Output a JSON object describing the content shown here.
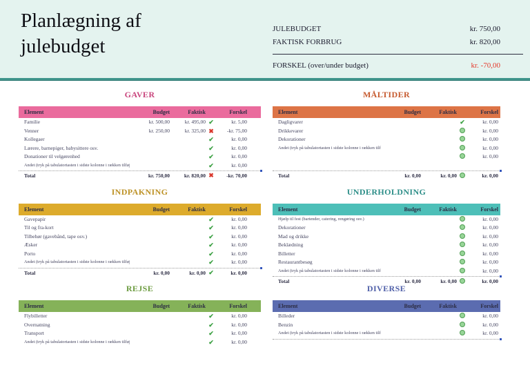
{
  "banner": {
    "title": "Planlægning af julebudget",
    "summary": {
      "budget_label": "JULEBUDGET",
      "budget_value": "kr. 750,00",
      "actual_label": "FAKTISK FORBRUG",
      "actual_value": "kr. 820,00",
      "diff_label": "FORSKEL (over/under budget)",
      "diff_value": "kr. -70,00"
    }
  },
  "columns": {
    "element": "Element",
    "budget": "Budget",
    "faktisk": "Faktisk",
    "forskel": "Forskel"
  },
  "colors": {
    "banner_bg": "#e4f3ef",
    "banner_rule": "#43978e",
    "negative": "#e5392b",
    "check": "#3da144",
    "cross": "#d9372c",
    "circle_fill": "#98d598"
  },
  "sections": [
    {
      "title": "GAVER",
      "side": "left",
      "header_bg": "#ea6b9d",
      "title_color": "#c9457d",
      "rows": [
        {
          "element": "Familie",
          "budget": "kr. 500,00",
          "faktisk": "kr. 495,00",
          "icon": "check",
          "forskel": "kr. 5,00"
        },
        {
          "element": "Venner",
          "budget": "kr. 250,00",
          "faktisk": "kr. 325,00",
          "icon": "x",
          "forskel": "-kr. 75,00"
        },
        {
          "element": "Kollegaer",
          "budget": "",
          "faktisk": "",
          "icon": "check",
          "forskel": "kr. 0,00"
        },
        {
          "element": "Lærere, barnepiger, babysittere osv.",
          "budget": "",
          "faktisk": "",
          "icon": "check",
          "forskel": "kr. 0,00"
        },
        {
          "element": "Donationer til velgørenhed",
          "budget": "",
          "faktisk": "",
          "icon": "check",
          "forskel": "kr. 0,00"
        },
        {
          "element": "Andet (tryk på tabulatortasten i sidste kolonne i rækken tilføje række)",
          "budget": "",
          "faktisk": "",
          "icon": "check",
          "forskel": "kr. 0,00"
        }
      ],
      "spacer_rows": 0,
      "total": {
        "label": "Total",
        "budget": "kr. 750,00",
        "faktisk": "kr. 820,00",
        "icon": "x",
        "forskel": "-kr. 70,00"
      }
    },
    {
      "title": "MÅLTIDER",
      "side": "right",
      "header_bg": "#dd7446",
      "title_color": "#c65a2e",
      "rows": [
        {
          "element": "Dagligvarer",
          "budget": "",
          "faktisk": "",
          "icon": "check",
          "forskel": "kr. 0,00"
        },
        {
          "element": "Drikkevarer",
          "budget": "",
          "faktisk": "",
          "icon": "circle",
          "forskel": "kr. 0,00"
        },
        {
          "element": "Dekorationer",
          "budget": "",
          "faktisk": "",
          "icon": "circle",
          "forskel": "kr. 0,00"
        },
        {
          "element": "Andet (tryk på tabulatortasten i sidste kolonne i rækken tilføje række)",
          "budget": "",
          "faktisk": "",
          "icon": "circle",
          "forskel": "kr. 0,00"
        },
        {
          "element": "",
          "budget": "",
          "faktisk": "",
          "icon": "circle",
          "forskel": "kr. 0,00"
        }
      ],
      "spacer_rows": 1,
      "total": {
        "label": "Total",
        "budget": "kr. 0,00",
        "faktisk": "kr. 0,00",
        "icon": "circle",
        "forskel": "kr. 0,00"
      }
    },
    {
      "title": "INDPAKNING",
      "side": "left",
      "header_bg": "#ddab2c",
      "title_color": "#bd9226",
      "rows": [
        {
          "element": "Gavepapir",
          "budget": "",
          "faktisk": "",
          "icon": "check",
          "forskel": "kr. 0,00"
        },
        {
          "element": "Til og fra-kort",
          "budget": "",
          "faktisk": "",
          "icon": "check",
          "forskel": "kr. 0,00"
        },
        {
          "element": "Tilbehør (gavebånd, tape osv.)",
          "budget": "",
          "faktisk": "",
          "icon": "check",
          "forskel": "kr. 0,00"
        },
        {
          "element": "Æsker",
          "budget": "",
          "faktisk": "",
          "icon": "check",
          "forskel": "kr. 0,00"
        },
        {
          "element": "Porto",
          "budget": "",
          "faktisk": "",
          "icon": "check",
          "forskel": "kr. 0,00"
        },
        {
          "element": "Andet (tryk på tabulatortasten i sidste kolonne i rækken tilføje række)",
          "budget": "",
          "faktisk": "",
          "icon": "check",
          "forskel": "kr. 0,00"
        }
      ],
      "spacer_rows": 0,
      "total": {
        "label": "Total",
        "budget": "kr. 0,00",
        "faktisk": "kr. 0,00",
        "icon": "check",
        "forskel": "kr. 0,00"
      }
    },
    {
      "title": "UNDERHOLDNING",
      "side": "right",
      "header_bg": "#4dbfb8",
      "title_color": "#2b8d87",
      "rows": [
        {
          "element": "Hjælp til fest (bartender, catering, rengøring osv.)",
          "budget": "",
          "faktisk": "",
          "icon": "circle",
          "forskel": "kr. 0,00"
        },
        {
          "element": "Dekorationer",
          "budget": "",
          "faktisk": "",
          "icon": "circle",
          "forskel": "kr. 0,00"
        },
        {
          "element": "Mad og drikke",
          "budget": "",
          "faktisk": "",
          "icon": "circle",
          "forskel": "kr. 0,00"
        },
        {
          "element": "Beklædning",
          "budget": "",
          "faktisk": "",
          "icon": "circle",
          "forskel": "kr. 0,00"
        },
        {
          "element": "Billetter",
          "budget": "",
          "faktisk": "",
          "icon": "circle",
          "forskel": "kr. 0,00"
        },
        {
          "element": "Restaurantbesøg",
          "budget": "",
          "faktisk": "",
          "icon": "circle",
          "forskel": "kr. 0,00"
        },
        {
          "element": "Andet (tryk på tabulatortasten i sidste kolonne i rækken tilføje række)",
          "budget": "",
          "faktisk": "",
          "icon": "circle",
          "forskel": "kr. 0,00"
        }
      ],
      "spacer_rows": 0,
      "total": {
        "label": "Total",
        "budget": "kr. 0,00",
        "faktisk": "kr. 0,00",
        "icon": "circle",
        "forskel": "kr. 0,00"
      }
    },
    {
      "title": "REJSE",
      "side": "left",
      "header_bg": "#85b259",
      "title_color": "#6d9c41",
      "rows": [
        {
          "element": "Flybilletter",
          "budget": "",
          "faktisk": "",
          "icon": "check",
          "forskel": "kr. 0,00"
        },
        {
          "element": "Overnatning",
          "budget": "",
          "faktisk": "",
          "icon": "check",
          "forskel": "kr. 0,00"
        },
        {
          "element": "Transport",
          "budget": "",
          "faktisk": "",
          "icon": "check",
          "forskel": "kr. 0,00"
        },
        {
          "element": "Andet (tryk på tabulatortasten i sidste kolonne i rækken tilføje række)",
          "budget": "",
          "faktisk": "",
          "icon": "check",
          "forskel": "kr. 0,00"
        }
      ],
      "spacer_rows": 0,
      "total": null,
      "tail": false
    },
    {
      "title": "DIVERSE",
      "side": "right",
      "header_bg": "#5b6cb0",
      "title_color": "#5161a9",
      "rows": [
        {
          "element": "Billeder",
          "budget": "",
          "faktisk": "",
          "icon": "circle",
          "forskel": "kr. 0,00"
        },
        {
          "element": "Benzin",
          "budget": "",
          "faktisk": "",
          "icon": "circle",
          "forskel": "kr. 0,00"
        },
        {
          "element": "Andet (tryk på tabulatortasten i sidste kolonne i rækken tilføje række)",
          "budget": "",
          "faktisk": "",
          "icon": "circle",
          "forskel": "kr. 0,00"
        }
      ],
      "spacer_rows": 0,
      "total": null,
      "tail": true
    }
  ]
}
